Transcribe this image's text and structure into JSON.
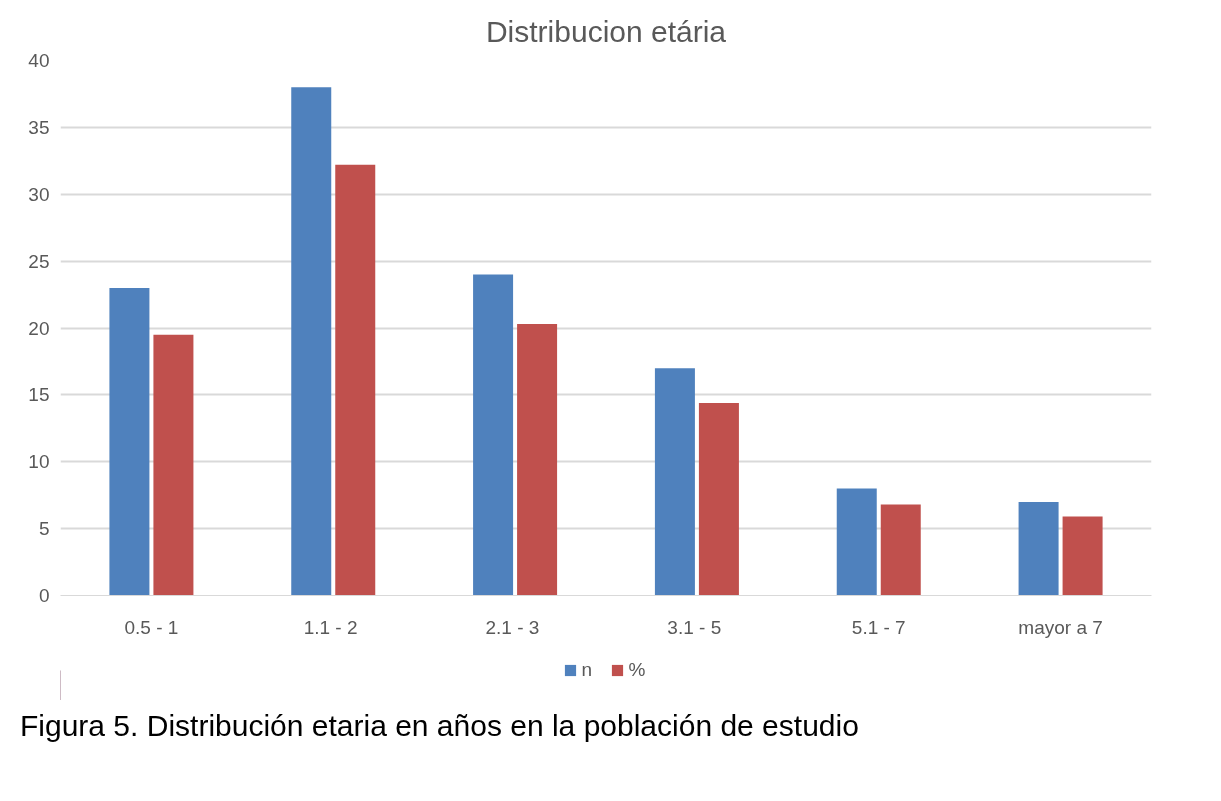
{
  "chart_data": {
    "type": "bar",
    "title": "Distribucion etária",
    "categories": [
      "0.5 - 1",
      "1.1  - 2",
      "2.1  - 3",
      "3.1  - 5",
      "5.1 - 7",
      "mayor a 7"
    ],
    "series": [
      {
        "name": "n",
        "color": "#4f81bd",
        "values": [
          23,
          38,
          24,
          17,
          8,
          7
        ]
      },
      {
        "name": "%",
        "color": "#c0504d",
        "values": [
          19.5,
          32.2,
          20.3,
          14.4,
          6.8,
          5.9
        ]
      }
    ],
    "ylim": [
      0,
      40
    ],
    "yticks": [
      0,
      5,
      10,
      15,
      20,
      25,
      30,
      35,
      40
    ],
    "grid": "y",
    "legend": "bottom",
    "annotations": [
      "Figura 5. Distribución etaria en años en la población de estudio"
    ]
  }
}
